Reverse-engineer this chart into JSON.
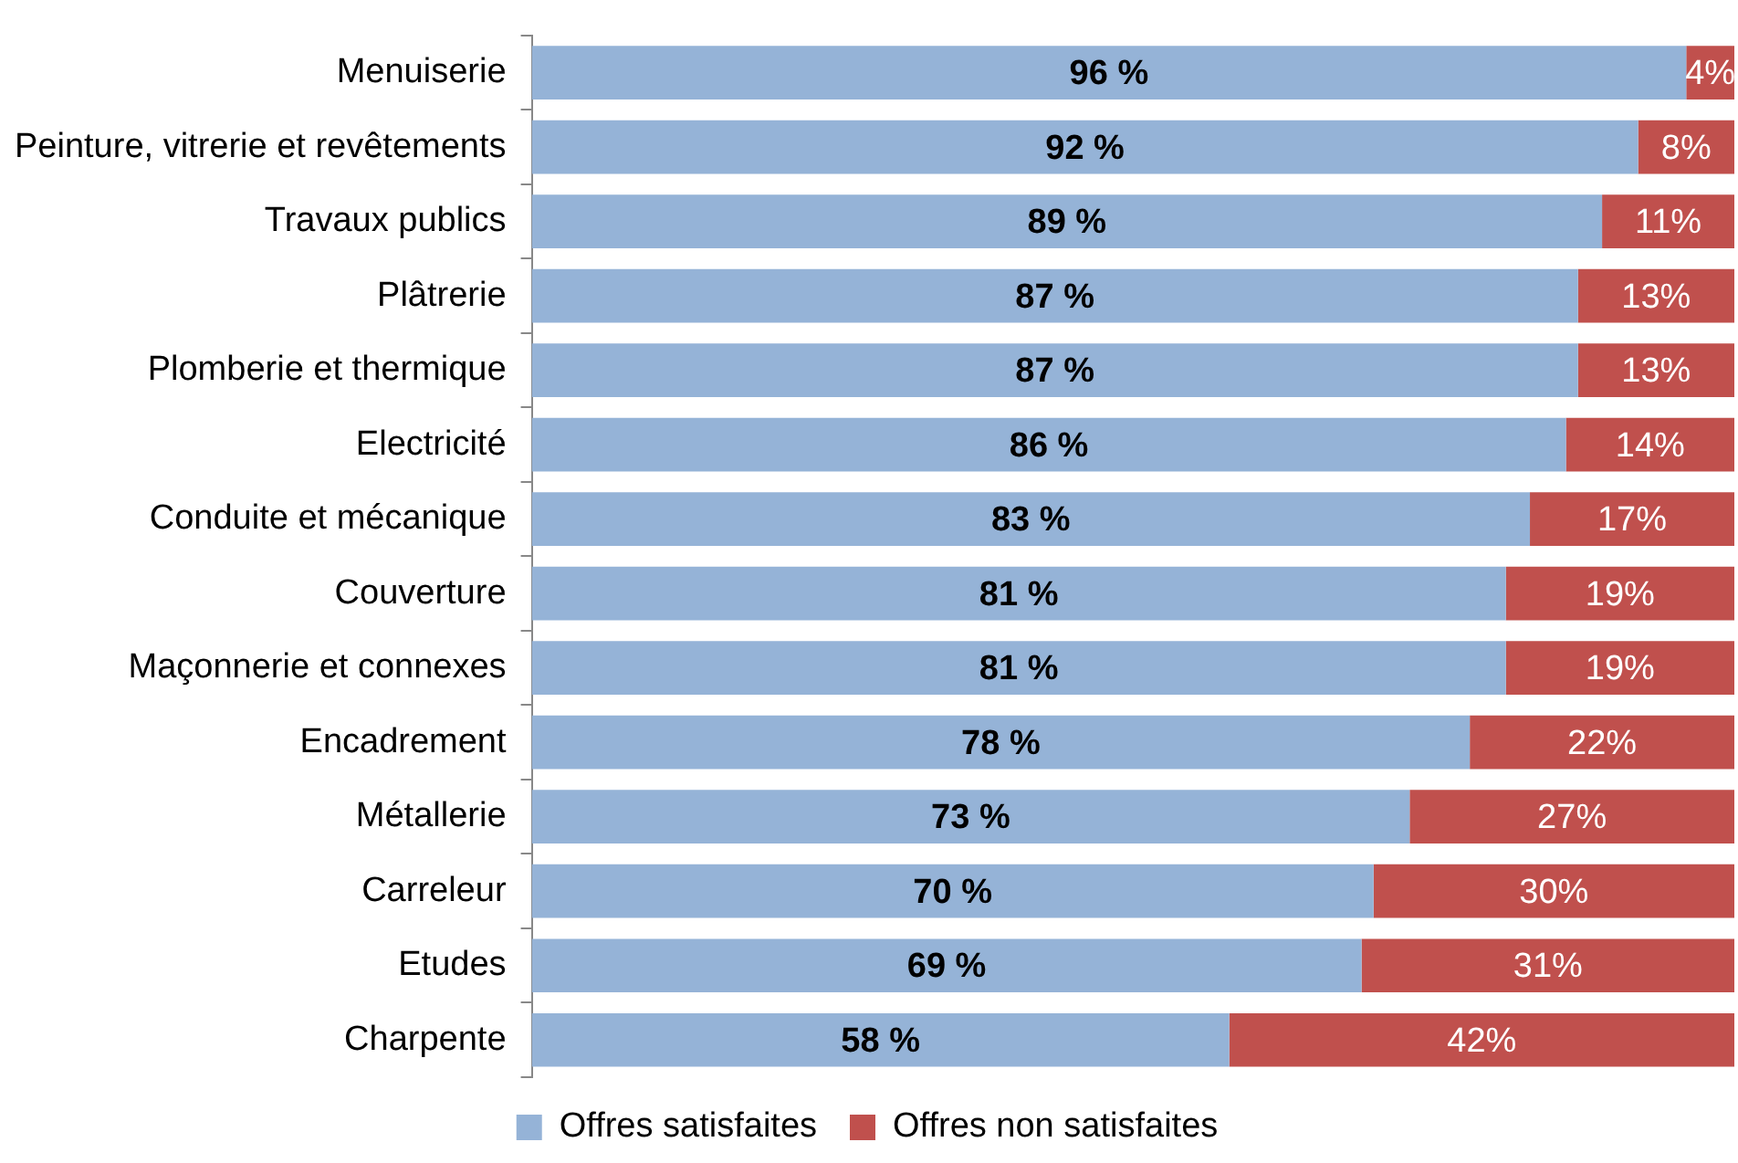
{
  "chart_data": {
    "type": "bar",
    "orientation": "horizontal",
    "stacked": true,
    "categories": [
      "Menuiserie",
      "Peinture, vitrerie et revêtements",
      "Travaux publics",
      "Plâtrerie",
      "Plomberie et thermique",
      "Electricité",
      "Conduite et mécanique",
      "Couverture",
      "Maçonnerie et connexes",
      "Encadrement",
      "Métallerie",
      "Carreleur",
      "Etudes",
      "Charpente"
    ],
    "series": [
      {
        "name": "Offres satisfaites",
        "color": "#95b3d7",
        "values": [
          96,
          92,
          89,
          87,
          87,
          86,
          83,
          81,
          81,
          78,
          73,
          70,
          69,
          58
        ],
        "value_labels": [
          "96 %",
          "92 %",
          "89 %",
          "87 %",
          "87 %",
          "86 %",
          "83 %",
          "81 %",
          "81 %",
          "78 %",
          "73 %",
          "70 %",
          "69 %",
          "58 %"
        ]
      },
      {
        "name": "Offres non satisfaites",
        "color": "#c0504d",
        "values": [
          4,
          8,
          11,
          13,
          13,
          14,
          17,
          19,
          19,
          22,
          27,
          30,
          31,
          42
        ],
        "value_labels": [
          "4%",
          "8%",
          "11%",
          "13%",
          "13%",
          "14%",
          "17%",
          "19%",
          "19%",
          "22%",
          "27%",
          "30%",
          "31%",
          "42%"
        ]
      }
    ],
    "xlim": [
      0,
      100
    ],
    "tick_labels": "y",
    "legend": "bottom"
  }
}
